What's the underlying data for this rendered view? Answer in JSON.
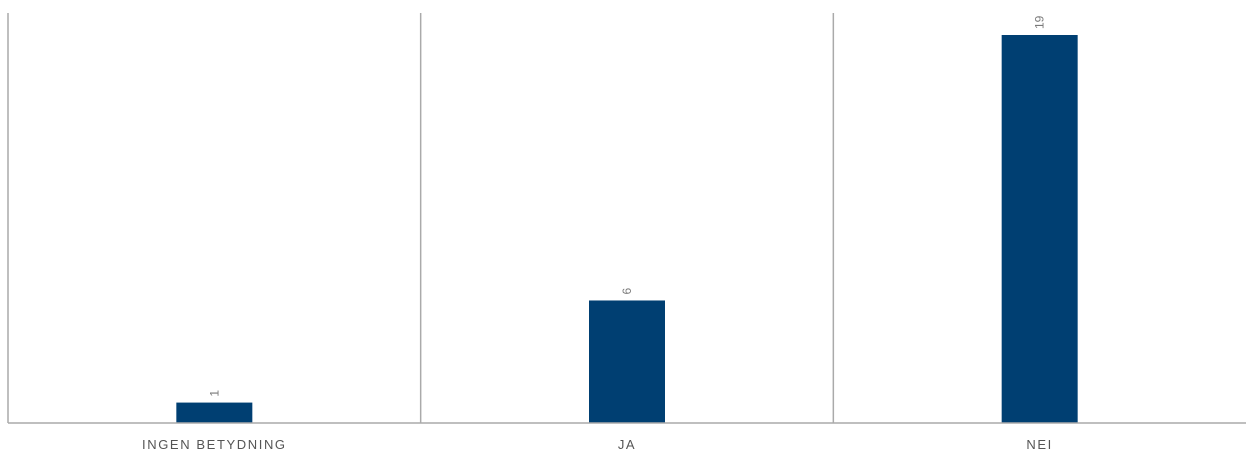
{
  "chart_data": {
    "type": "bar",
    "categories": [
      "INGEN BETYDNING",
      "JA",
      "NEI"
    ],
    "values": [
      1,
      6,
      19
    ],
    "ylim": [
      0,
      20
    ],
    "grid": false,
    "legend": "none",
    "colors": {
      "bar": "#003f72",
      "axis": "#aaaaaa",
      "divider": "#aaaaaa"
    }
  }
}
